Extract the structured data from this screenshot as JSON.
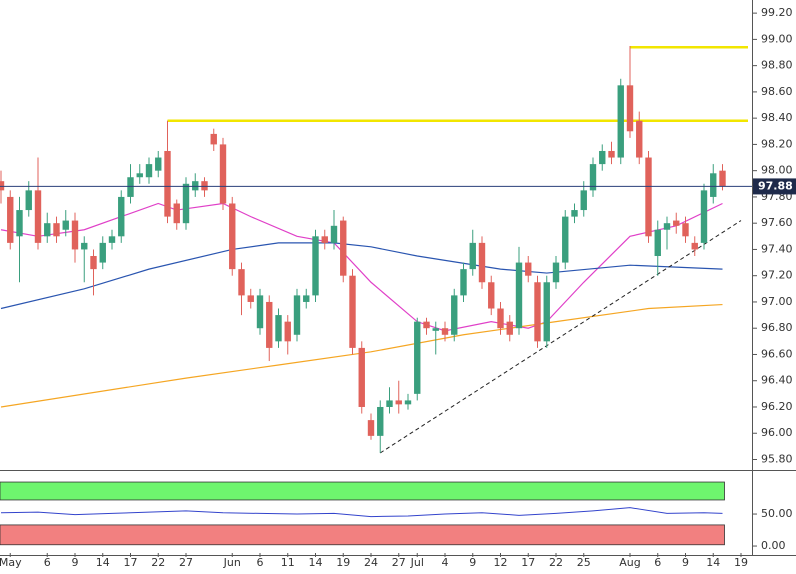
{
  "chart_data": [
    {
      "type": "candlestick",
      "categories": [
        null,
        "May",
        null,
        null,
        null,
        "6",
        null,
        null,
        "9",
        null,
        null,
        "14",
        null,
        null,
        "17",
        null,
        null,
        "22",
        null,
        null,
        "27",
        null,
        null,
        null,
        null,
        "Jun",
        null,
        null,
        "6",
        null,
        null,
        "11",
        null,
        null,
        "14",
        null,
        null,
        "19",
        null,
        null,
        "24",
        null,
        null,
        "27",
        null,
        "Jul",
        null,
        null,
        "4",
        null,
        null,
        "9",
        null,
        null,
        "12",
        null,
        null,
        "17",
        null,
        null,
        "22",
        null,
        null,
        "25",
        null,
        null,
        null,
        null,
        "Aug",
        null,
        null,
        "6",
        null,
        null,
        "9",
        null,
        null,
        "14",
        null,
        null,
        "19"
      ],
      "open": [
        97.92,
        97.8,
        97.5,
        97.7,
        97.85,
        97.5,
        97.6,
        97.55,
        97.62,
        97.4,
        97.35,
        97.3,
        97.45,
        97.5,
        97.8,
        97.95,
        97.95,
        98.0,
        98.15,
        97.75,
        97.6,
        97.85,
        97.92,
        98.28,
        98.2,
        97.75,
        97.25,
        97.05,
        96.8,
        97.0,
        96.7,
        96.85,
        96.75,
        97.0,
        97.05,
        97.5,
        97.45,
        97.62,
        97.2,
        96.65,
        96.1,
        95.98,
        96.2,
        96.25,
        96.22,
        96.3,
        96.85,
        96.78,
        96.8,
        96.75,
        97.05,
        97.25,
        97.45,
        97.15,
        96.95,
        96.85,
        96.8,
        97.3,
        97.15,
        96.7,
        97.15,
        97.3,
        97.65,
        97.7,
        97.85,
        98.05,
        98.15,
        98.1,
        98.65,
        98.38,
        98.1,
        97.35,
        97.55,
        97.62,
        97.6,
        97.45,
        97.45,
        97.8,
        98.0,
        null,
        null
      ],
      "high": [
        98.0,
        97.85,
        97.8,
        97.92,
        98.1,
        97.68,
        97.65,
        97.7,
        97.68,
        97.5,
        97.4,
        97.5,
        97.55,
        97.85,
        98.05,
        98.05,
        98.1,
        98.15,
        98.38,
        97.78,
        97.95,
        97.98,
        97.95,
        98.32,
        98.25,
        97.8,
        97.3,
        97.1,
        97.1,
        97.05,
        96.95,
        96.9,
        97.1,
        97.1,
        97.55,
        97.55,
        97.7,
        97.65,
        97.25,
        96.7,
        96.15,
        96.25,
        96.35,
        96.4,
        96.3,
        96.88,
        96.88,
        96.85,
        96.85,
        97.1,
        97.3,
        97.55,
        97.5,
        97.2,
        97.0,
        96.9,
        97.42,
        97.35,
        97.2,
        97.2,
        97.35,
        97.7,
        97.75,
        97.92,
        98.1,
        98.2,
        98.22,
        98.7,
        98.95,
        98.45,
        98.15,
        97.62,
        97.65,
        97.68,
        97.65,
        97.5,
        97.9,
        98.05,
        98.05,
        null,
        null
      ],
      "low": [
        97.75,
        97.4,
        97.15,
        97.65,
        97.4,
        97.45,
        97.45,
        97.5,
        97.3,
        97.15,
        97.05,
        97.25,
        97.4,
        97.45,
        97.75,
        97.9,
        97.9,
        97.95,
        97.6,
        97.55,
        97.55,
        97.8,
        97.8,
        98.15,
        97.7,
        97.2,
        96.9,
        96.95,
        96.75,
        96.55,
        96.65,
        96.6,
        96.7,
        96.95,
        97.0,
        97.4,
        97.4,
        97.15,
        96.6,
        96.15,
        95.95,
        95.85,
        96.15,
        96.15,
        96.18,
        96.25,
        96.75,
        96.6,
        96.7,
        96.7,
        97.0,
        97.2,
        97.1,
        96.9,
        96.75,
        96.7,
        96.75,
        97.15,
        96.65,
        96.65,
        97.1,
        97.25,
        97.6,
        97.65,
        97.8,
        98.0,
        98.05,
        98.05,
        98.25,
        98.05,
        97.45,
        97.2,
        97.4,
        97.52,
        97.45,
        97.35,
        97.4,
        97.75,
        97.85,
        null,
        null
      ],
      "close": [
        97.85,
        97.45,
        97.7,
        97.85,
        97.45,
        97.6,
        97.5,
        97.62,
        97.4,
        97.45,
        97.25,
        97.45,
        97.5,
        97.8,
        97.95,
        97.98,
        98.05,
        98.1,
        97.65,
        97.6,
        97.9,
        97.92,
        97.85,
        98.2,
        97.75,
        97.25,
        97.05,
        97.0,
        97.05,
        96.65,
        96.9,
        96.7,
        97.05,
        97.05,
        97.5,
        97.45,
        97.58,
        97.2,
        96.65,
        96.2,
        95.98,
        96.2,
        96.25,
        96.22,
        96.25,
        96.85,
        96.8,
        96.8,
        96.75,
        97.05,
        97.25,
        97.45,
        97.15,
        96.95,
        96.8,
        96.75,
        97.3,
        97.2,
        96.7,
        97.15,
        97.3,
        97.65,
        97.7,
        97.85,
        98.05,
        98.15,
        98.1,
        98.65,
        98.3,
        98.1,
        97.5,
        97.55,
        97.6,
        97.58,
        97.5,
        97.4,
        97.85,
        97.98,
        97.88,
        null,
        null
      ],
      "up_color": "#3a9f7e",
      "down_color": "#e0625b",
      "lines": [
        {
          "color": "#e040c8",
          "x": [
            0,
            4,
            9,
            13,
            17,
            19,
            24,
            27,
            32,
            36,
            40,
            45,
            48,
            53,
            57,
            59,
            63,
            68,
            73,
            78
          ],
          "values": [
            97.55,
            97.5,
            97.55,
            97.65,
            97.75,
            97.7,
            97.75,
            97.65,
            97.5,
            97.45,
            97.15,
            96.85,
            96.78,
            96.85,
            96.8,
            96.85,
            97.15,
            97.5,
            97.58,
            97.75
          ]
        },
        {
          "color": "#2a55b0",
          "x": [
            0,
            9,
            16,
            25,
            30,
            36,
            40,
            45,
            54,
            59,
            68,
            78
          ],
          "values": [
            96.95,
            97.1,
            97.25,
            97.4,
            97.45,
            97.45,
            97.42,
            97.35,
            97.25,
            97.22,
            97.28,
            97.25
          ]
        },
        {
          "color": "#f5a623",
          "x": [
            0,
            20,
            30,
            40,
            50,
            60,
            70,
            78
          ],
          "values": [
            96.2,
            96.42,
            96.52,
            96.62,
            96.75,
            96.85,
            96.95,
            96.98
          ]
        }
      ],
      "levels": [
        {
          "value": 98.38,
          "from": 18,
          "color": "#f2e600"
        },
        {
          "value": 98.94,
          "from": 68,
          "color": "#f2e600"
        }
      ],
      "trendline": {
        "x": [
          41,
          80
        ],
        "values": [
          95.85,
          97.62
        ]
      },
      "last_price": 97.88,
      "ylim": [
        95.72,
        99.3
      ],
      "yticks": [
        {
          "value": 95.8,
          "label": "95.80"
        },
        {
          "value": 96,
          "label": "96.00"
        },
        {
          "value": 96.2,
          "label": "96.20"
        },
        {
          "value": 96.4,
          "label": "96.40"
        },
        {
          "value": 96.6,
          "label": "96.60"
        },
        {
          "value": 96.8,
          "label": "96.80"
        },
        {
          "value": 97,
          "label": "97.00"
        },
        {
          "value": 97.2,
          "label": "97.20"
        },
        {
          "value": 97.4,
          "label": "97.40"
        },
        {
          "value": 97.6,
          "label": "97.60"
        },
        {
          "value": 97.8,
          "label": "97.80"
        },
        {
          "value": 98,
          "label": "98.00"
        },
        {
          "value": 98.2,
          "label": "98.20"
        },
        {
          "value": 98.4,
          "label": "98.40"
        },
        {
          "value": 98.6,
          "label": "98.60"
        },
        {
          "value": 98.8,
          "label": "98.80"
        },
        {
          "value": 99,
          "label": "99.00"
        },
        {
          "value": 99.2,
          "label": "99.20"
        }
      ]
    },
    {
      "type": "line",
      "x": [
        0,
        4,
        8,
        12,
        16,
        20,
        24,
        28,
        32,
        36,
        40,
        44,
        48,
        52,
        56,
        60,
        64,
        68,
        72,
        76,
        78
      ],
      "values": [
        52,
        53,
        49,
        51,
        53,
        55,
        52,
        51,
        50,
        51,
        46,
        47,
        50,
        52,
        48,
        51,
        55,
        60,
        51,
        52,
        51
      ],
      "color": "#3344cc",
      "bands": [
        {
          "range": [
            72,
            100
          ],
          "color": "#6ef56e"
        },
        {
          "range": [
            2,
            33
          ],
          "color": "#f28080"
        }
      ],
      "ylim": [
        -14,
        111
      ],
      "yticks": [
        {
          "value": 50,
          "label": "50.00"
        },
        {
          "value": 0,
          "label": "0.00"
        }
      ]
    }
  ]
}
